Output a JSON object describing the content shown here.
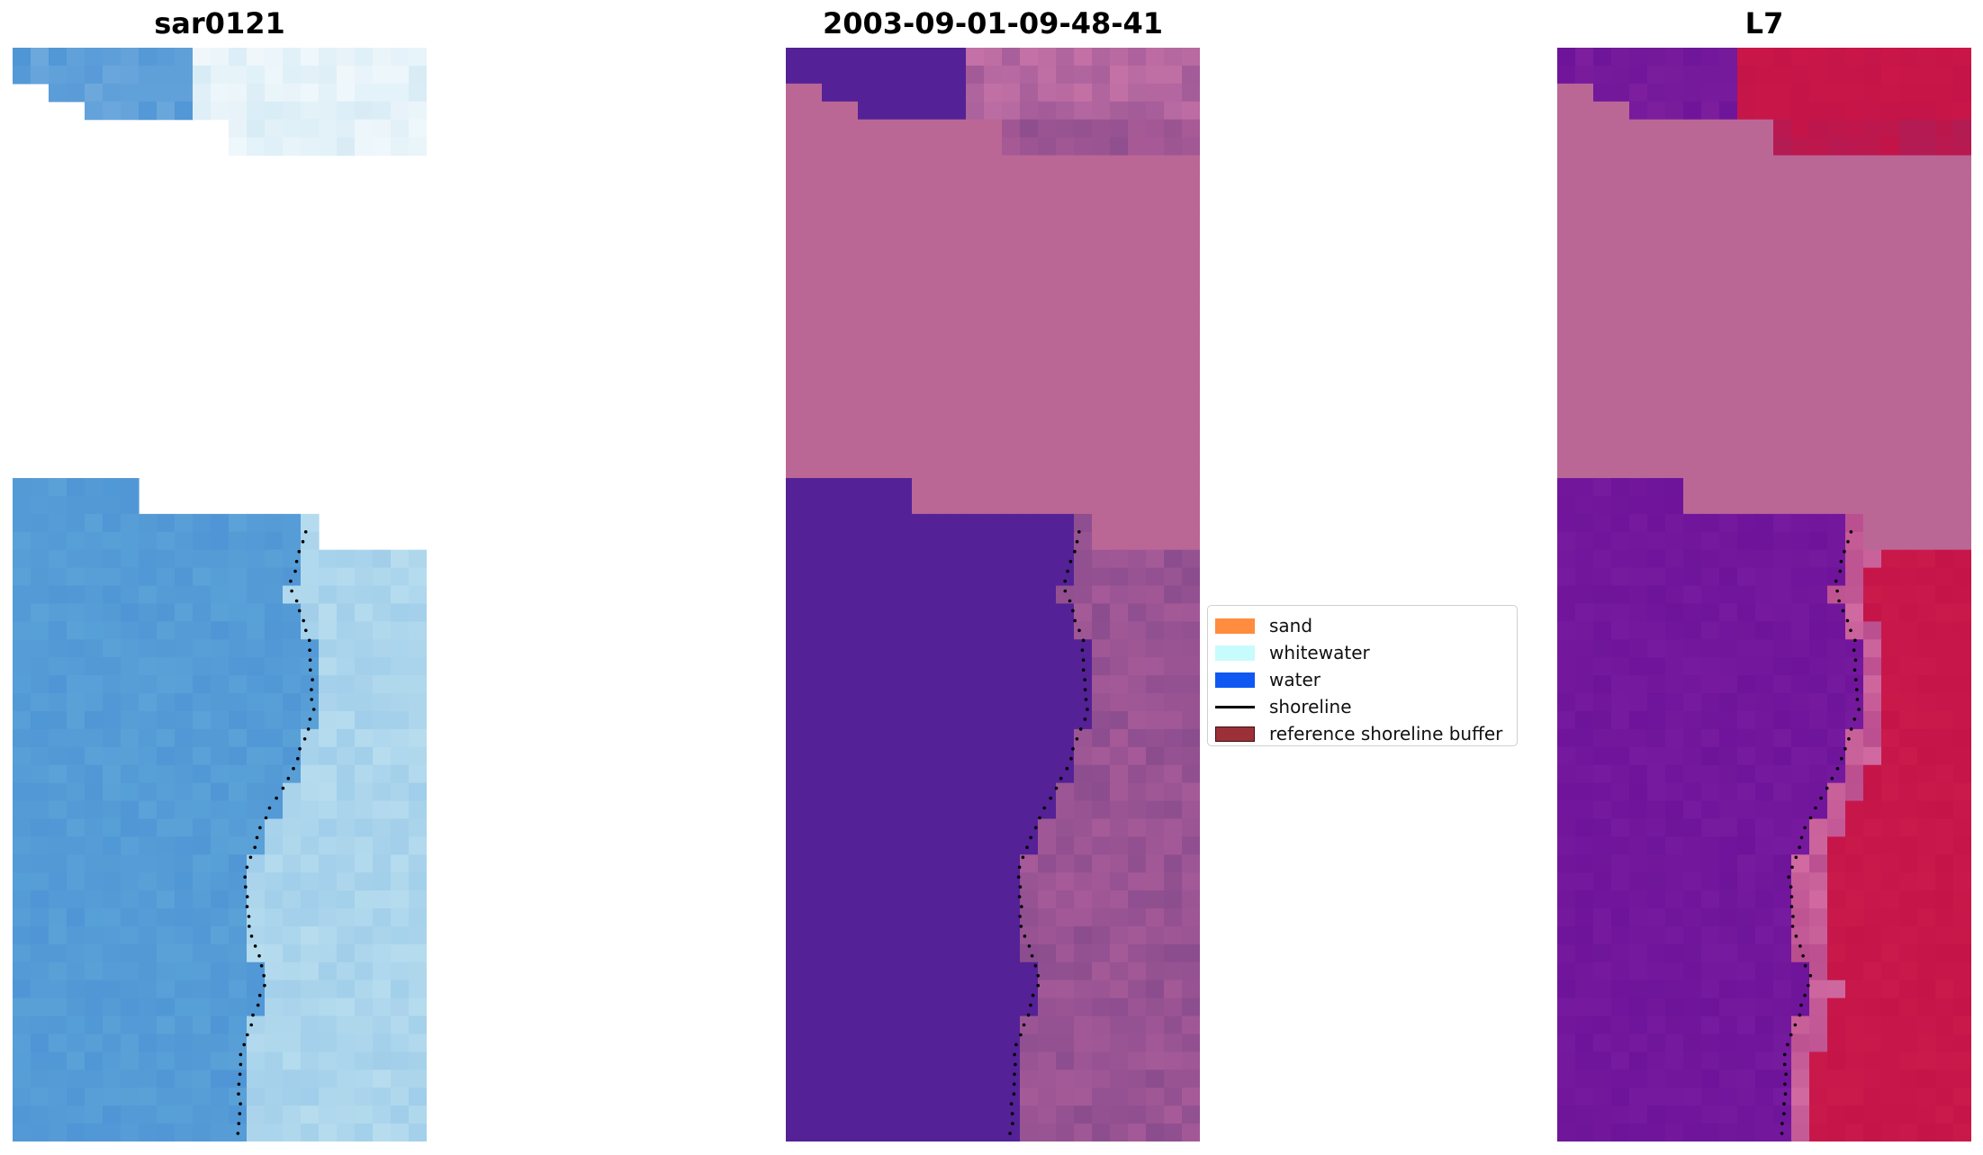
{
  "panels": [
    {
      "id": "rgb",
      "title": "sar0121",
      "palette": "rgb"
    },
    {
      "id": "classified",
      "title": "2003-09-01-09-48-41",
      "palette": "class"
    },
    {
      "id": "index",
      "title": "L7",
      "palette": "index"
    }
  ],
  "legend": {
    "items": [
      {
        "label": "sand",
        "kind": "patch",
        "color": "#ff8c3f"
      },
      {
        "label": "whitewater",
        "kind": "patch",
        "color": "#c8fbfb"
      },
      {
        "label": "water",
        "kind": "patch",
        "color": "#0f59f2"
      },
      {
        "label": "shoreline",
        "kind": "line",
        "color": "#000000"
      },
      {
        "label": "reference shoreline buffer",
        "kind": "patch",
        "color": "#9c3038",
        "edge": "#3a1010"
      }
    ]
  },
  "colors": {
    "no_data": "#bb6796",
    "water_class": "#542196",
    "index_low": "#6e149a",
    "index_high": "#c41448",
    "rgb_water": "#5096d6",
    "rgb_surf": "#b6dcee"
  }
}
